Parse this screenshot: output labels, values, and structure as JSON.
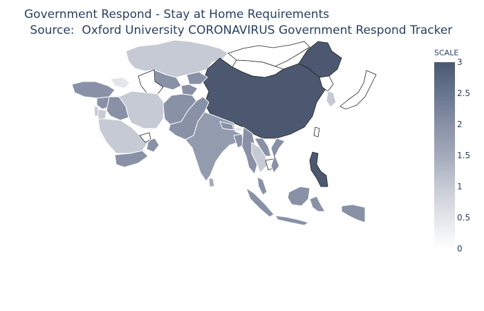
{
  "title": {
    "line1": "Government Respond - Stay at Home Requirements",
    "line2": " Source:  Oxford University CORONAVIRUS Government Respond Tracker"
  },
  "colorbar": {
    "title": "SCALE",
    "min": 0,
    "max": 3,
    "ticks": [
      "0",
      "0.5",
      "1",
      "1.5",
      "2",
      "2.5",
      "3"
    ],
    "colors": [
      "#ffffff",
      "#e3e5ea",
      "#c6cad4",
      "#a3aabb",
      "#8891a6",
      "#677590",
      "#4b5870"
    ]
  },
  "regions": [
    {
      "name": "kazakhstan-region",
      "value": 1
    },
    {
      "name": "mongolia-region",
      "value": null
    },
    {
      "name": "russia-east-region",
      "value": null
    },
    {
      "name": "china-region",
      "value": 3
    },
    {
      "name": "northeast-china-region",
      "value": 3
    },
    {
      "name": "uzbekistan-region",
      "value": 2
    },
    {
      "name": "kyrgyzstan-region",
      "value": 2
    },
    {
      "name": "tajikistan-region",
      "value": 2
    },
    {
      "name": "turkmenistan-region",
      "value": null
    },
    {
      "name": "turkey-region",
      "value": 2
    },
    {
      "name": "syria-region",
      "value": 2
    },
    {
      "name": "iraq-region",
      "value": 2
    },
    {
      "name": "jordan-region",
      "value": 1
    },
    {
      "name": "israel-region",
      "value": 1
    },
    {
      "name": "iran-region",
      "value": 1
    },
    {
      "name": "saudi-arabia-region",
      "value": 1
    },
    {
      "name": "yemen-region",
      "value": 2
    },
    {
      "name": "oman-region",
      "value": 2
    },
    {
      "name": "uae-region",
      "value": null
    },
    {
      "name": "afghanistan-region",
      "value": 2
    },
    {
      "name": "pakistan-region",
      "value": 2
    },
    {
      "name": "india-region",
      "value": 1.8
    },
    {
      "name": "nepal-region",
      "value": 2
    },
    {
      "name": "bhutan-region",
      "value": 0.5
    },
    {
      "name": "bangladesh-region",
      "value": 2
    },
    {
      "name": "sri-lanka-region",
      "value": 1.5
    },
    {
      "name": "myanmar-region",
      "value": 2
    },
    {
      "name": "thailand-region",
      "value": 1
    },
    {
      "name": "laos-region",
      "value": 2
    },
    {
      "name": "vietnam-region",
      "value": 2
    },
    {
      "name": "cambodia-region",
      "value": null
    },
    {
      "name": "malaysia-region",
      "value": 2
    },
    {
      "name": "borneo-region",
      "value": 2
    },
    {
      "name": "indonesia-region",
      "value": 2
    },
    {
      "name": "philippines-region",
      "value": 3
    },
    {
      "name": "papua-region",
      "value": 2
    },
    {
      "name": "south-korea-region",
      "value": 1
    },
    {
      "name": "north-korea-region",
      "value": null
    },
    {
      "name": "japan-region",
      "value": null
    },
    {
      "name": "taiwan-region",
      "value": null
    },
    {
      "name": "georgia-region",
      "value": 0.5
    }
  ]
}
